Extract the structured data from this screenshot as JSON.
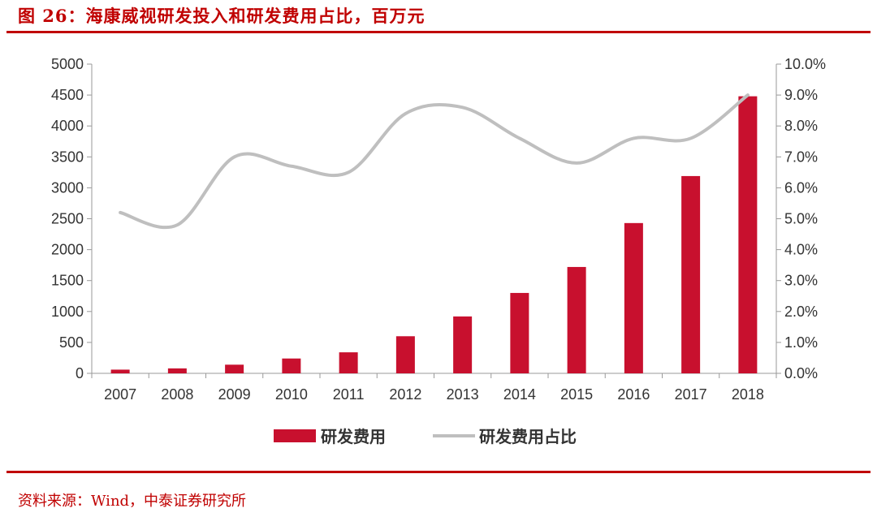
{
  "title": "图 26：海康威视研发投入和研发费用占比，百万元",
  "source": "资料来源：Wind，中泰证券研究所",
  "colors": {
    "accent": "#c00000",
    "bar": "#c8102e",
    "line": "#bfbfbf",
    "axis": "#999999"
  },
  "chart_data": {
    "type": "bar",
    "categories": [
      "2007",
      "2008",
      "2009",
      "2010",
      "2011",
      "2012",
      "2013",
      "2014",
      "2015",
      "2016",
      "2017",
      "2018"
    ],
    "series": [
      {
        "name": "研发费用",
        "type": "bar",
        "axis": "left",
        "values": [
          60,
          80,
          140,
          240,
          340,
          600,
          920,
          1300,
          1720,
          2430,
          3190,
          4480
        ]
      },
      {
        "name": "研发费用占比",
        "type": "line",
        "axis": "right",
        "values": [
          5.2,
          4.8,
          7.0,
          6.7,
          6.5,
          8.4,
          8.6,
          7.6,
          6.8,
          7.6,
          7.6,
          9.0
        ]
      }
    ],
    "ylim_left": [
      0,
      5000
    ],
    "ylim_right": [
      0,
      10
    ],
    "yticks_left": [
      "0",
      "500",
      "1000",
      "1500",
      "2000",
      "2500",
      "3000",
      "3500",
      "4000",
      "4500",
      "5000"
    ],
    "yticks_right": [
      "0.0%",
      "1.0%",
      "2.0%",
      "3.0%",
      "4.0%",
      "5.0%",
      "6.0%",
      "7.0%",
      "8.0%",
      "9.0%",
      "10.0%"
    ],
    "legend_position": "bottom",
    "grid": false
  }
}
